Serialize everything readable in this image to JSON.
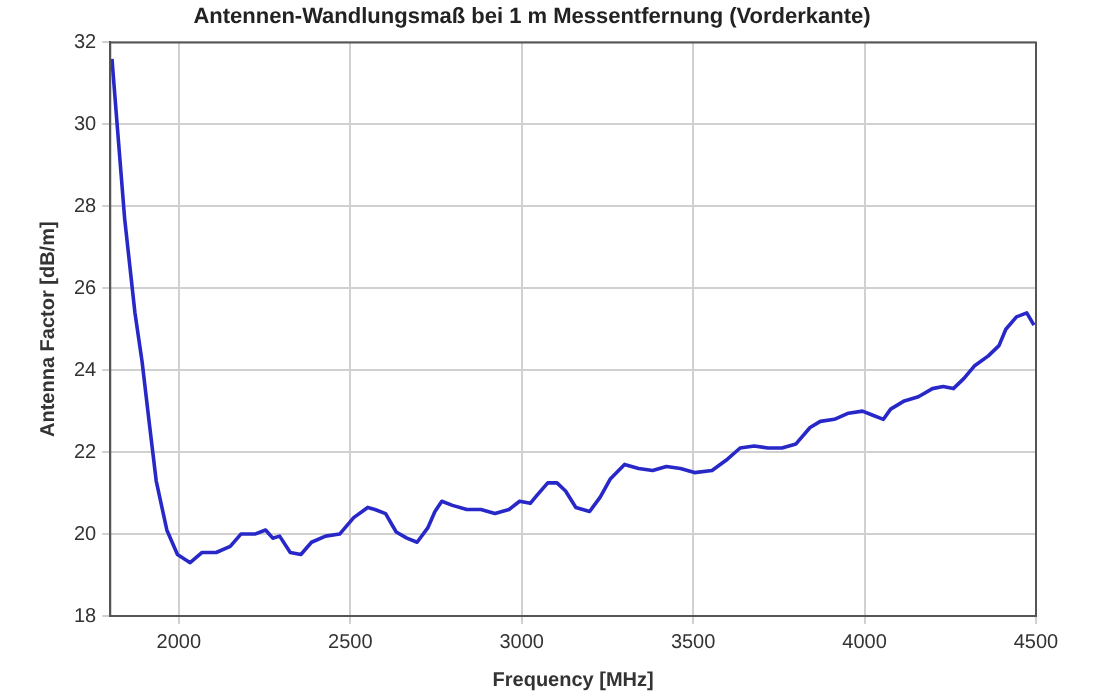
{
  "chart_data": {
    "type": "line",
    "title": "Antennen-Wandlungsmaß bei 1 m Messentfernung (Vorderkante)",
    "xlabel": "Frequency [MHz]",
    "ylabel": "Antenna Factor [dB/m]",
    "xlim": [
      1800,
      4500
    ],
    "xticks": [
      2000,
      2500,
      3000,
      3500,
      4000,
      4500
    ],
    "ylim": [
      18,
      32
    ],
    "yticks": [
      18,
      20,
      22,
      24,
      26,
      28,
      30,
      32
    ],
    "grid": true,
    "legend": false,
    "marker": "none",
    "line_style": "solid",
    "series": [
      {
        "color": "#2828c8",
        "x": [
          1805,
          1821,
          1842,
          1872,
          1893,
          1914,
          1934,
          1965,
          1996,
          2033,
          2068,
          2109,
          2150,
          2181,
          2222,
          2253,
          2274,
          2294,
          2325,
          2356,
          2387,
          2428,
          2469,
          2510,
          2551,
          2572,
          2603,
          2634,
          2665,
          2695,
          2726,
          2747,
          2767,
          2798,
          2840,
          2881,
          2922,
          2963,
          2994,
          3025,
          3045,
          3076,
          3103,
          3128,
          3158,
          3198,
          3229,
          3259,
          3300,
          3341,
          3382,
          3422,
          3463,
          3504,
          3555,
          3596,
          3637,
          3678,
          3718,
          3759,
          3800,
          3841,
          3871,
          3912,
          3953,
          3994,
          4024,
          4055,
          4076,
          4116,
          4157,
          4198,
          4229,
          4259,
          4290,
          4320,
          4361,
          4392,
          4412,
          4443,
          4473,
          4494
        ],
        "values": [
          31.6,
          29.9,
          27.7,
          25.4,
          24.2,
          22.7,
          21.3,
          20.1,
          19.5,
          19.3,
          19.55,
          19.55,
          19.7,
          20.0,
          20.0,
          20.1,
          19.9,
          19.95,
          19.55,
          19.5,
          19.8,
          19.95,
          20.0,
          20.4,
          20.65,
          20.6,
          20.5,
          20.05,
          19.9,
          19.8,
          20.15,
          20.55,
          20.8,
          20.7,
          20.6,
          20.6,
          20.5,
          20.6,
          20.8,
          20.75,
          20.95,
          21.25,
          21.25,
          21.05,
          20.65,
          20.55,
          20.9,
          21.35,
          21.7,
          21.6,
          21.55,
          21.65,
          21.6,
          21.5,
          21.55,
          21.8,
          22.1,
          22.15,
          22.1,
          22.1,
          22.2,
          22.6,
          22.75,
          22.8,
          22.95,
          23.0,
          22.9,
          22.8,
          23.05,
          23.25,
          23.35,
          23.55,
          23.6,
          23.55,
          23.8,
          24.1,
          24.35,
          24.6,
          25.0,
          25.3,
          25.4,
          25.1
        ]
      }
    ]
  }
}
